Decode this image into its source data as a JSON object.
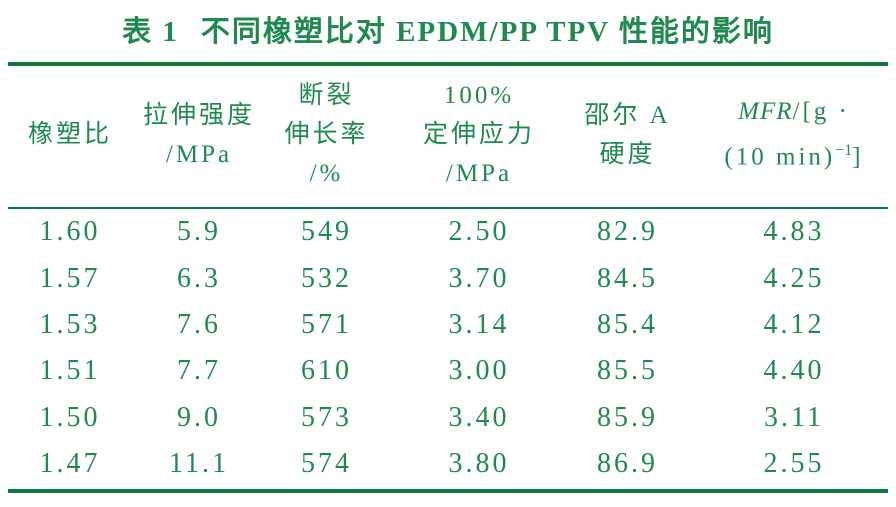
{
  "title": {
    "prefix": "表 1",
    "text": "不同橡塑比对 EPDM/PP TPV 性能的影响"
  },
  "table": {
    "headers": [
      {
        "lines": [
          "橡塑比"
        ]
      },
      {
        "lines": [
          "拉伸强度",
          "/MPa"
        ]
      },
      {
        "lines": [
          "断裂",
          "伸长率",
          "/%"
        ]
      },
      {
        "lines": [
          "100%",
          "定伸应力",
          "/MPa"
        ]
      },
      {
        "lines": [
          "邵尔 A",
          "硬度"
        ]
      },
      {
        "italic": "MFR",
        "rest": "/[g ·",
        "line2_base": "(10 min)",
        "line2_sup": "−1",
        "line2_close": "]"
      }
    ],
    "rows": [
      [
        "1.60",
        "5.9",
        "549",
        "2.50",
        "82.9",
        "4.83"
      ],
      [
        "1.57",
        "6.3",
        "532",
        "3.70",
        "84.5",
        "4.25"
      ],
      [
        "1.53",
        "7.6",
        "571",
        "3.14",
        "85.4",
        "4.12"
      ],
      [
        "1.51",
        "7.7",
        "610",
        "3.00",
        "85.5",
        "4.40"
      ],
      [
        "1.50",
        "9.0",
        "573",
        "3.40",
        "85.9",
        "3.11"
      ],
      [
        "1.47",
        "11.1",
        "574",
        "3.80",
        "86.9",
        "2.55"
      ]
    ]
  },
  "colors": {
    "text": "#1f8a4f",
    "rule": "#0d7a3f",
    "background": "#ffffff"
  }
}
